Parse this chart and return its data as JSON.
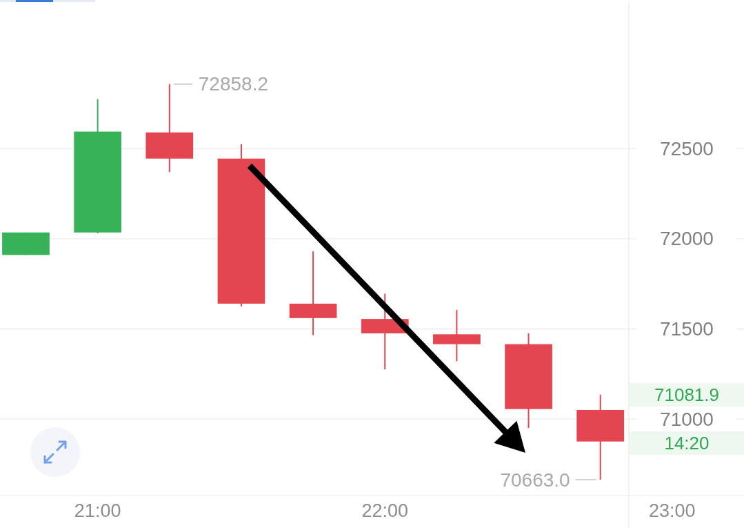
{
  "chart_data": {
    "type": "candlestick",
    "x": [
      20.75,
      21,
      21.25,
      21.5,
      21.75,
      22,
      22.25,
      22.5,
      22.75
    ],
    "ohlc": [
      [
        71910,
        72035,
        71910,
        72035
      ],
      [
        72035,
        72775,
        72030,
        72595
      ],
      [
        72590,
        72858.2,
        72370,
        72445
      ],
      [
        72445,
        72525,
        71625,
        71640
      ],
      [
        71640,
        71930,
        71465,
        71560
      ],
      [
        71555,
        71695,
        71275,
        71475
      ],
      [
        71470,
        71605,
        71320,
        71415
      ],
      [
        71415,
        71475,
        70950,
        71055
      ],
      [
        71050,
        71135,
        70663.0,
        70875
      ]
    ],
    "colors": [
      "#38b259",
      "#38b259",
      "#e34651",
      "#e34651",
      "#e34651",
      "#e34651",
      "#e34651",
      "#e34651",
      "#e34651"
    ],
    "xlim": [
      20.66,
      23.25
    ],
    "xticks": [
      {
        "value": 21,
        "label": "21:00"
      },
      {
        "value": 22,
        "label": "22:00"
      },
      {
        "value": 23,
        "label": "23:00"
      }
    ],
    "ylim": [
      70575,
      73325
    ],
    "yticks": [
      71000,
      71500,
      72000,
      72500
    ],
    "grid": "y",
    "annotations": [
      {
        "text": "72858.2",
        "x": 21.25,
        "y": 72858.2
      },
      {
        "text": "70663.0",
        "x": 22.75,
        "y": 70663.0
      },
      "71081.9",
      "14:20"
    ]
  }
}
